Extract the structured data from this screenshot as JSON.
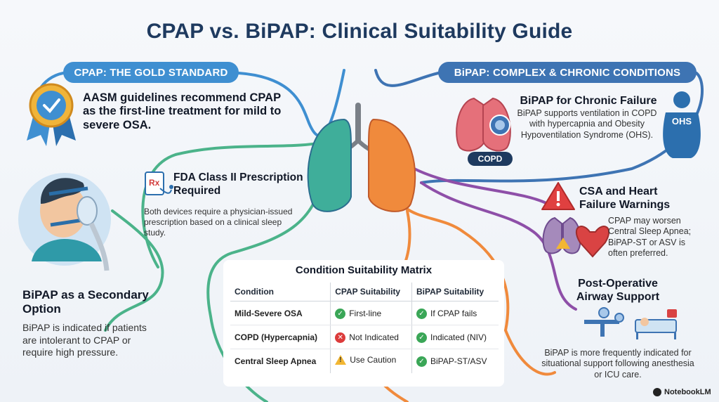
{
  "title": "CPAP vs. BiPAP: Clinical Suitability Guide",
  "left_header": "CPAP: THE GOLD STANDARD",
  "right_header": "BiPAP: COMPLEX & CHRONIC CONDITIONS",
  "gold_standard": {
    "text": "AASM guidelines recommend CPAP as the first-line treatment for mild to severe OSA.",
    "icon": "award-badge-icon"
  },
  "fda": {
    "title": "FDA Class II Prescription Required",
    "desc": "Both devices require a physician-issued prescription based on a clinical sleep study.",
    "icon": "prescription-icon"
  },
  "bipap_secondary": {
    "title": "BiPAP as a Secondary Option",
    "desc": "BiPAP is indicated if patients are intolerant to CPAP or require high pressure."
  },
  "chronic": {
    "title": "BiPAP for Chronic Failure",
    "desc": "BiPAP supports ventilation in COPD with hypercapnia and Obesity Hypoventilation Syndrome (OHS).",
    "badge": "COPD",
    "ohs_label": "OHS"
  },
  "csa": {
    "title": "CSA and Heart Failure Warnings",
    "desc": "CPAP may worsen Central Sleep Apnea; BiPAP-ST or ASV is often preferred."
  },
  "postop": {
    "title": "Post-Operative Airway Support",
    "desc": "BiPAP is more frequently indicated for situational support following anesthesia or ICU care."
  },
  "matrix": {
    "title": "Condition Suitability Matrix",
    "headers": [
      "Condition",
      "CPAP Suitability",
      "BiPAP Suitability"
    ],
    "rows": [
      {
        "condition": "Mild-Severe OSA",
        "cpap": "First-line",
        "cpap_icon": "ok",
        "bipap": "If CPAP fails",
        "bipap_icon": "ok"
      },
      {
        "condition": "COPD (Hypercapnia)",
        "cpap": "Not Indicated",
        "cpap_icon": "no",
        "bipap": "Indicated (NIV)",
        "bipap_icon": "ok"
      },
      {
        "condition": "Central Sleep Apnea",
        "cpap": "Use Caution",
        "cpap_icon": "warn",
        "bipap": "BiPAP-ST/ASV",
        "bipap_icon": "ok"
      }
    ]
  },
  "brand": "NotebookLM",
  "colors": {
    "blue": "#3f8fd1",
    "navy": "#1e3a5f",
    "green": "#4bb38a",
    "orange": "#f08a3c",
    "purple": "#8e4fa8"
  }
}
